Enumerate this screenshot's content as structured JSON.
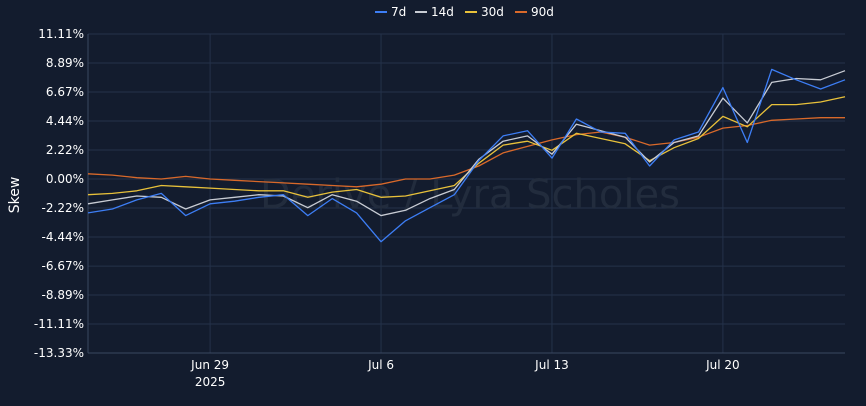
{
  "chart_data": {
    "type": "line",
    "title": "",
    "xlabel": "",
    "ylabel": "Skew",
    "watermark": "Derive / Lyra Scholes",
    "legend_position": "top-center",
    "grid": true,
    "ylim": [
      -13.33,
      11.11
    ],
    "xlim": [
      "2025-06-24",
      "2025-07-25"
    ],
    "y_ticks": [
      11.11,
      8.89,
      6.67,
      4.44,
      2.22,
      0.0,
      -2.22,
      -4.44,
      -6.67,
      -8.89,
      -11.11,
      -13.33
    ],
    "y_tick_labels": [
      "11.11%",
      "8.89%",
      "6.67%",
      "4.44%",
      "2.22%",
      "0.00%",
      "-2.22%",
      "-4.44%",
      "-6.67%",
      "-8.89%",
      "-11.11%",
      "-13.33%"
    ],
    "x_ticks": [
      "2025-06-29",
      "2025-07-06",
      "2025-07-13",
      "2025-07-20"
    ],
    "x_tick_labels": [
      "Jun 29",
      "Jul 6",
      "Jul 13",
      "Jul 20"
    ],
    "x_tick_sublabels": [
      "2025",
      "",
      "",
      ""
    ],
    "x": [
      "2025-06-24",
      "2025-06-25",
      "2025-06-26",
      "2025-06-27",
      "2025-06-28",
      "2025-06-29",
      "2025-06-30",
      "2025-07-01",
      "2025-07-02",
      "2025-07-03",
      "2025-07-04",
      "2025-07-05",
      "2025-07-06",
      "2025-07-07",
      "2025-07-08",
      "2025-07-09",
      "2025-07-10",
      "2025-07-11",
      "2025-07-12",
      "2025-07-13",
      "2025-07-14",
      "2025-07-15",
      "2025-07-16",
      "2025-07-17",
      "2025-07-18",
      "2025-07-19",
      "2025-07-20",
      "2025-07-21",
      "2025-07-22",
      "2025-07-23",
      "2025-07-24",
      "2025-07-25"
    ],
    "series": [
      {
        "name": "7d",
        "color": "#3d7ef5",
        "values": [
          -2.6,
          -2.3,
          -1.6,
          -1.1,
          -2.8,
          -1.9,
          -1.7,
          -1.4,
          -1.2,
          -2.8,
          -1.5,
          -2.6,
          -4.8,
          -3.2,
          -2.2,
          -1.2,
          1.4,
          3.3,
          3.7,
          1.6,
          4.6,
          3.6,
          3.5,
          1.0,
          3.0,
          3.6,
          7.0,
          2.8,
          8.4,
          7.6,
          6.9,
          7.6
        ]
      },
      {
        "name": "14d",
        "color": "#c8ccd4",
        "values": [
          -1.9,
          -1.6,
          -1.3,
          -1.4,
          -2.3,
          -1.6,
          -1.4,
          -1.2,
          -1.3,
          -2.2,
          -1.2,
          -1.7,
          -2.8,
          -2.4,
          -1.5,
          -0.8,
          1.5,
          2.9,
          3.3,
          1.9,
          4.2,
          3.7,
          3.2,
          1.3,
          2.8,
          3.3,
          6.2,
          4.3,
          7.4,
          7.7,
          7.6,
          8.3
        ]
      },
      {
        "name": "30d",
        "color": "#e8c13a",
        "values": [
          -1.2,
          -1.1,
          -0.9,
          -0.5,
          -0.6,
          -0.7,
          -0.8,
          -0.9,
          -0.9,
          -1.4,
          -1.0,
          -0.8,
          -1.4,
          -1.3,
          -0.9,
          -0.5,
          1.2,
          2.6,
          2.9,
          2.2,
          3.5,
          3.1,
          2.7,
          1.4,
          2.4,
          3.1,
          4.8,
          4.0,
          5.7,
          5.7,
          5.9,
          6.3
        ]
      },
      {
        "name": "90d",
        "color": "#d9692a",
        "values": [
          0.4,
          0.3,
          0.1,
          0.0,
          0.2,
          0.0,
          -0.1,
          -0.2,
          -0.3,
          -0.4,
          -0.5,
          -0.6,
          -0.4,
          0.0,
          0.0,
          0.3,
          1.0,
          2.0,
          2.5,
          3.0,
          3.4,
          3.6,
          3.2,
          2.6,
          2.8,
          3.2,
          3.9,
          4.1,
          4.5,
          4.6,
          4.7,
          4.7
        ]
      }
    ]
  }
}
